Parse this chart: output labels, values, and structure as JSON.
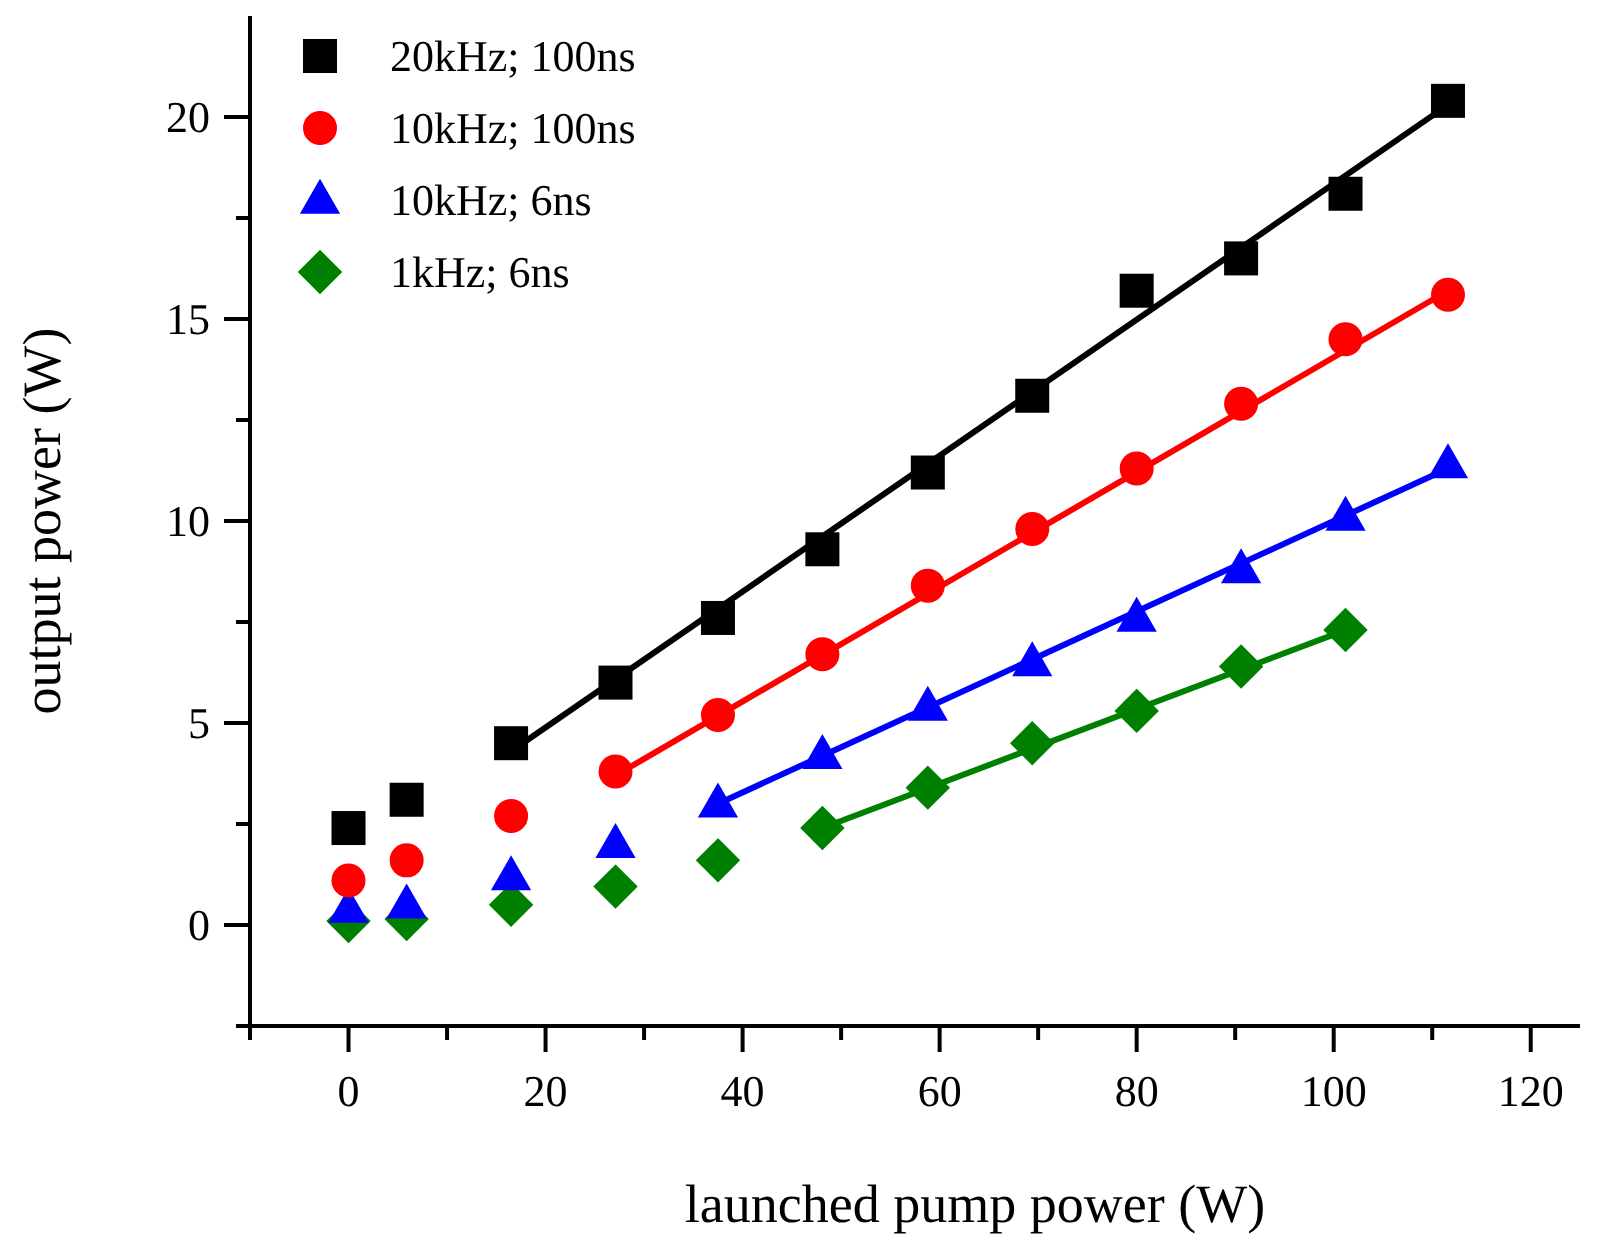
{
  "chart_data": {
    "type": "scatter",
    "xlabel": "launched pump power (W)",
    "ylabel": "output power (W)",
    "xlim": [
      -10,
      125
    ],
    "ylim": [
      -2.5,
      22.5
    ],
    "xticks": [
      {
        "value": -10,
        "label": null
      },
      0,
      {
        "value": 10,
        "label": null
      },
      20,
      {
        "value": 30,
        "label": null
      },
      40,
      {
        "value": 50,
        "label": null
      },
      60,
      {
        "value": 70,
        "label": null
      },
      80,
      {
        "value": 90,
        "label": null
      },
      100,
      {
        "value": 110,
        "label": null
      },
      120
    ],
    "yticks": [
      {
        "value": -2.5,
        "label": null
      },
      0,
      {
        "value": 2.5,
        "label": null
      },
      5,
      {
        "value": 7.5,
        "label": null
      },
      10,
      {
        "value": 12.5,
        "label": null
      },
      15,
      {
        "value": 17.5,
        "label": null
      },
      20
    ],
    "grid": false,
    "legend": "top left",
    "series": [
      {
        "name": "20kHz; 100ns",
        "color": "#000000",
        "marker": "square",
        "x": [
          0,
          5.9,
          16.5,
          27.1,
          37.5,
          48.1,
          58.8,
          69.4,
          80,
          90.6,
          101.2,
          111.6
        ],
        "values": [
          2.4,
          3.1,
          4.5,
          6.0,
          7.6,
          9.3,
          11.2,
          13.1,
          15.7,
          16.5,
          18.1,
          20.4
        ]
      },
      {
        "name": "10kHz; 100ns",
        "color": "#ff0000",
        "marker": "circle",
        "x": [
          0,
          5.9,
          16.5,
          27.1,
          37.5,
          48.1,
          58.8,
          69.4,
          80,
          90.6,
          101.2,
          111.6
        ],
        "values": [
          1.1,
          1.6,
          2.7,
          3.8,
          5.2,
          6.7,
          8.4,
          9.8,
          11.3,
          12.9,
          14.5,
          15.6
        ]
      },
      {
        "name": "10kHz;  6ns",
        "color": "#0000ff",
        "marker": "triangle",
        "x": [
          0,
          5.9,
          16.5,
          27.1,
          37.5,
          48.1,
          58.8,
          69.4,
          80,
          90.6,
          101.2,
          111.6
        ],
        "values": [
          0.4,
          0.5,
          1.2,
          2.0,
          3.0,
          4.2,
          5.4,
          6.5,
          7.6,
          8.8,
          10.1,
          11.4
        ]
      },
      {
        "name": "1kHz; 6ns",
        "color": "#008000",
        "marker": "diamond",
        "x": [
          0,
          5.9,
          16.5,
          27.1,
          37.5,
          48.1,
          58.8,
          69.4,
          80,
          90.6,
          101.2
        ],
        "values": [
          0.1,
          0.15,
          0.5,
          0.95,
          1.6,
          2.4,
          3.4,
          4.5,
          5.3,
          6.4,
          7.3
        ]
      },
      {
        "type": "line",
        "color": "#000000",
        "x": [
          16.5,
          111.6
        ],
        "values": [
          4.3,
          20.3
        ]
      },
      {
        "type": "line",
        "color": "#ff0000",
        "x": [
          27.1,
          111.6
        ],
        "values": [
          3.7,
          15.7
        ]
      },
      {
        "type": "line",
        "color": "#0000ff",
        "x": [
          37.5,
          111.6
        ],
        "values": [
          3.0,
          11.3
        ]
      },
      {
        "type": "line",
        "color": "#008000",
        "x": [
          48.1,
          101.2
        ],
        "values": [
          2.4,
          7.3
        ]
      }
    ]
  }
}
